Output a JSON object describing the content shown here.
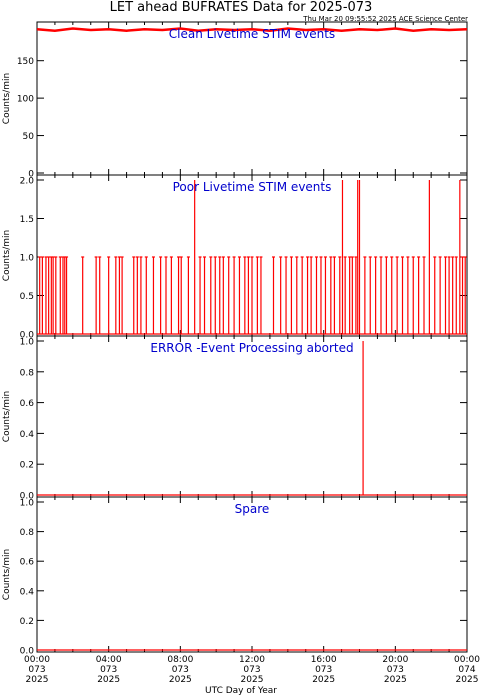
{
  "title": "LET ahead BUFRATES Data for 2025-073",
  "timestamp": "Thu Mar 20 09:55:52 2025 ACE Science Center",
  "xlabel": "UTC Day of Year",
  "colors": {
    "data": "#ff0000",
    "panel_title": "#0000cc",
    "axes": "#000000"
  },
  "x_ticks": [
    {
      "time": "00:00",
      "doy": "073",
      "year": "2025"
    },
    {
      "time": "04:00",
      "doy": "073",
      "year": "2025"
    },
    {
      "time": "08:00",
      "doy": "073",
      "year": "2025"
    },
    {
      "time": "12:00",
      "doy": "073",
      "year": "2025"
    },
    {
      "time": "16:00",
      "doy": "073",
      "year": "2025"
    },
    {
      "time": "20:00",
      "doy": "073",
      "year": "2025"
    },
    {
      "time": "00:00",
      "doy": "074",
      "year": "2025"
    }
  ],
  "chart_data": [
    {
      "type": "line",
      "title": "Clean Livetime STIM events",
      "ylabel": "Counts/min",
      "x_unit": "hours since 2025-073 00:00 UTC",
      "xlim": [
        0,
        24
      ],
      "ylim": [
        0,
        195
      ],
      "yticks": [
        0,
        50,
        100,
        150
      ],
      "ytick_labels": [
        "0",
        "50",
        "100",
        "150"
      ],
      "series": [
        {
          "points": [
            [
              0,
              192
            ],
            [
              1,
              190
            ],
            [
              2,
              193
            ],
            [
              3,
              191
            ],
            [
              4,
              192
            ],
            [
              5,
              190
            ],
            [
              6,
              192
            ],
            [
              7,
              191
            ],
            [
              8,
              193
            ],
            [
              9,
              190
            ],
            [
              10,
              192
            ],
            [
              11,
              191
            ],
            [
              12,
              192
            ],
            [
              13,
              190
            ],
            [
              14,
              193
            ],
            [
              15,
              191
            ],
            [
              16,
              192
            ],
            [
              17,
              190
            ],
            [
              18,
              192
            ],
            [
              19,
              191
            ],
            [
              20,
              193
            ],
            [
              21,
              190
            ],
            [
              22,
              192
            ],
            [
              23,
              191
            ],
            [
              24,
              192
            ]
          ]
        }
      ]
    },
    {
      "type": "line",
      "title": "Poor Livetime STIM events",
      "ylabel": "Counts/min",
      "xlim": [
        0,
        24
      ],
      "ylim": [
        0,
        2
      ],
      "yticks": [
        0,
        0.5,
        1,
        1.5,
        2
      ],
      "ytick_labels": [
        "0.0",
        "0.5",
        "1.0",
        "1.5",
        "2.0"
      ],
      "spikes": [
        [
          0.15,
          1
        ],
        [
          0.3,
          1
        ],
        [
          0.5,
          1
        ],
        [
          0.65,
          1
        ],
        [
          0.8,
          1
        ],
        [
          0.9,
          1
        ],
        [
          1.05,
          1
        ],
        [
          1.3,
          1
        ],
        [
          1.45,
          1
        ],
        [
          1.55,
          1
        ],
        [
          1.65,
          1
        ],
        [
          2.55,
          1
        ],
        [
          3.3,
          1
        ],
        [
          3.5,
          1
        ],
        [
          4.0,
          1
        ],
        [
          4.4,
          1
        ],
        [
          4.6,
          1
        ],
        [
          4.75,
          1
        ],
        [
          5.4,
          1
        ],
        [
          5.6,
          1
        ],
        [
          5.8,
          1
        ],
        [
          6.1,
          1
        ],
        [
          6.5,
          1
        ],
        [
          6.9,
          1
        ],
        [
          7.2,
          1
        ],
        [
          7.5,
          1
        ],
        [
          7.9,
          1
        ],
        [
          8.05,
          1
        ],
        [
          8.45,
          1
        ],
        [
          8.8,
          2
        ],
        [
          9.1,
          1
        ],
        [
          9.35,
          1
        ],
        [
          9.7,
          1
        ],
        [
          9.95,
          1
        ],
        [
          10.2,
          1
        ],
        [
          10.4,
          1
        ],
        [
          10.7,
          1
        ],
        [
          11.0,
          1
        ],
        [
          11.3,
          1
        ],
        [
          11.6,
          1
        ],
        [
          11.8,
          1
        ],
        [
          12.0,
          1
        ],
        [
          12.3,
          1
        ],
        [
          12.5,
          1
        ],
        [
          13.2,
          1
        ],
        [
          13.6,
          1
        ],
        [
          13.9,
          1
        ],
        [
          14.2,
          1
        ],
        [
          14.5,
          1
        ],
        [
          14.8,
          1
        ],
        [
          15.1,
          1
        ],
        [
          15.3,
          1
        ],
        [
          15.6,
          1
        ],
        [
          15.85,
          1
        ],
        [
          16.1,
          1
        ],
        [
          16.4,
          1
        ],
        [
          16.6,
          1
        ],
        [
          16.9,
          1
        ],
        [
          17.05,
          2
        ],
        [
          17.2,
          1
        ],
        [
          17.45,
          1
        ],
        [
          17.6,
          1
        ],
        [
          17.8,
          1
        ],
        [
          17.9,
          2
        ],
        [
          18.0,
          2
        ],
        [
          18.3,
          1
        ],
        [
          18.6,
          1
        ],
        [
          18.9,
          1
        ],
        [
          19.2,
          1
        ],
        [
          19.5,
          1
        ],
        [
          19.8,
          1
        ],
        [
          20.1,
          1
        ],
        [
          20.4,
          1
        ],
        [
          20.7,
          1
        ],
        [
          21.0,
          1
        ],
        [
          21.3,
          1
        ],
        [
          21.6,
          1
        ],
        [
          21.9,
          2
        ],
        [
          22.2,
          1
        ],
        [
          22.5,
          1
        ],
        [
          22.8,
          1
        ],
        [
          23.0,
          1
        ],
        [
          23.2,
          1
        ],
        [
          23.4,
          1
        ],
        [
          23.6,
          2
        ],
        [
          23.75,
          1
        ],
        [
          23.9,
          1
        ]
      ]
    },
    {
      "type": "line",
      "title": "ERROR -Event Processing aborted",
      "ylabel": "Counts/min",
      "xlim": [
        0,
        24
      ],
      "ylim": [
        0,
        1
      ],
      "yticks": [
        0,
        0.2,
        0.4,
        0.6,
        0.8,
        1.0
      ],
      "ytick_labels": [
        "0.0",
        "0.2",
        "0.4",
        "0.6",
        "0.8",
        "1.0"
      ],
      "spikes": [
        [
          18.2,
          1
        ]
      ]
    },
    {
      "type": "line",
      "title": "Spare",
      "ylabel": "Counts/min",
      "xlim": [
        0,
        24
      ],
      "ylim": [
        0,
        1
      ],
      "yticks": [
        0,
        0.2,
        0.4,
        0.6,
        0.8,
        1.0
      ],
      "ytick_labels": [
        "0.0",
        "0.2",
        "0.4",
        "0.6",
        "0.8",
        "1.0"
      ],
      "spikes": []
    }
  ]
}
